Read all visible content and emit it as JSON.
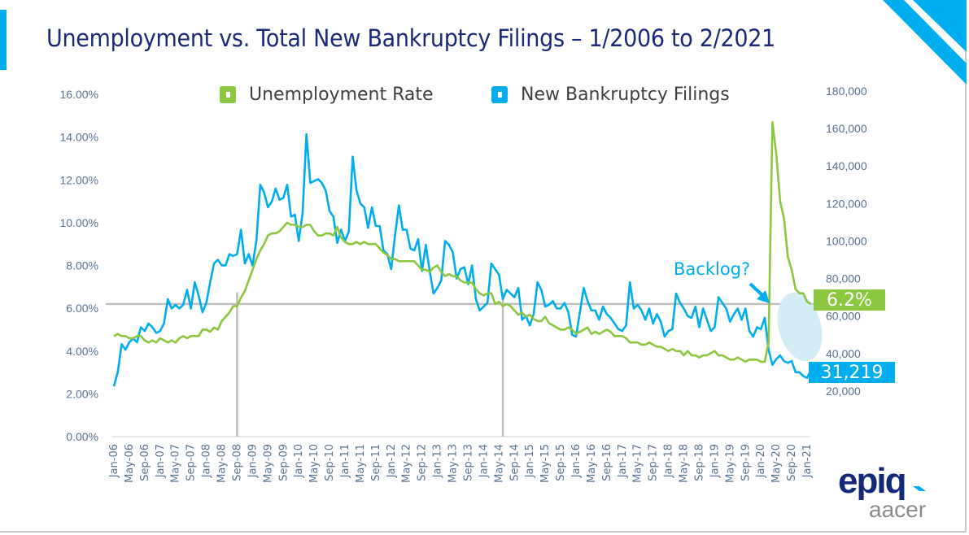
{
  "title": "Unemployment vs. Total New Bankruptcy Filings – 1/2006 to 2/2021",
  "colors": {
    "unemployment": "#8dc63f",
    "filings": "#00aeef",
    "title": "#1b2a7b",
    "axis_text": "#5a7391",
    "reference_line": "#bfbfbf",
    "backlog_ellipse": "#d3ecf6"
  },
  "annotations": {
    "backlog": "Backlog?",
    "unemployment_callout": "6.2%",
    "filings_callout": "31,219"
  },
  "logo": {
    "brand": "epiq",
    "sub": "aacer"
  },
  "chart_data": {
    "type": "line",
    "title": "Unemployment vs. Total New Bankruptcy Filings – 1/2006 to 2/2021",
    "x_range": [
      "Jan-06",
      "Feb-21"
    ],
    "frequency": "monthly",
    "x_tick_labels": [
      "Jan-06",
      "May-06",
      "Sep-06",
      "Jan-07",
      "May-07",
      "Sep-07",
      "Jan-08",
      "May-08",
      "Sep-08",
      "Jan-09",
      "May-09",
      "Sep-09",
      "Jan-10",
      "May-10",
      "Sep-10",
      "Jan-11",
      "May-11",
      "Sep-11",
      "Jan-12",
      "May-12",
      "Sep-12",
      "Jan-13",
      "May-13",
      "Sep-13",
      "Jan-14",
      "May-14",
      "Sep-14",
      "Jan-15",
      "May-15",
      "Sep-15",
      "Jan-16",
      "May-16",
      "Sep-16",
      "Jan-17",
      "May-17",
      "Sep-17",
      "Jan-18",
      "May-18",
      "Sep-18",
      "Jan-19",
      "May-19",
      "Sep-19",
      "Jan-20",
      "May-20",
      "Sep-20",
      "Jan-21"
    ],
    "y_left": {
      "ylim": [
        0,
        16
      ],
      "ticks": [
        "0.00%",
        "2.00%",
        "4.00%",
        "6.00%",
        "8.00%",
        "10.00%",
        "12.00%",
        "14.00%",
        "16.00%"
      ]
    },
    "y_right": {
      "ylim": [
        0,
        180000
      ],
      "ticks": [
        "20,000",
        "40,000",
        "60,000",
        "80,000",
        "100,000",
        "120,000",
        "140,000",
        "160,000",
        "180,000"
      ]
    },
    "legend": {
      "placement": "top-center"
    },
    "grid": false,
    "reference_lines": {
      "horizontal_unemployment_pct": 6.2,
      "vertical_at": [
        "Sep-08",
        "Jun-14"
      ]
    },
    "series": [
      {
        "name": "Unemployment Rate",
        "axis": "left",
        "unit": "%",
        "values": [
          4.7,
          4.8,
          4.7,
          4.7,
          4.6,
          4.6,
          4.7,
          4.7,
          4.5,
          4.4,
          4.5,
          4.4,
          4.6,
          4.5,
          4.4,
          4.5,
          4.4,
          4.6,
          4.7,
          4.6,
          4.7,
          4.7,
          4.7,
          5.0,
          5.0,
          4.9,
          5.1,
          5.0,
          5.4,
          5.6,
          5.8,
          6.1,
          6.1,
          6.5,
          6.8,
          7.3,
          7.8,
          8.3,
          8.7,
          9.0,
          9.4,
          9.5,
          9.5,
          9.6,
          9.8,
          10.0,
          9.9,
          9.9,
          9.8,
          9.8,
          9.9,
          9.9,
          9.6,
          9.4,
          9.4,
          9.5,
          9.5,
          9.4,
          9.8,
          9.3,
          9.1,
          9.0,
          9.0,
          9.1,
          9.0,
          9.1,
          9.0,
          9.0,
          9.0,
          8.8,
          8.6,
          8.5,
          8.3,
          8.3,
          8.2,
          8.2,
          8.2,
          8.2,
          8.2,
          8.0,
          7.8,
          7.8,
          7.7,
          7.9,
          8.0,
          7.7,
          7.5,
          7.6,
          7.5,
          7.5,
          7.3,
          7.2,
          7.2,
          7.2,
          6.9,
          6.7,
          6.6,
          6.7,
          6.7,
          6.2,
          6.3,
          6.1,
          6.2,
          6.1,
          5.9,
          5.7,
          5.8,
          5.6,
          5.7,
          5.5,
          5.4,
          5.4,
          5.6,
          5.3,
          5.2,
          5.1,
          5.0,
          5.0,
          5.1,
          5.0,
          4.8,
          4.9,
          5.0,
          5.1,
          4.8,
          4.9,
          4.8,
          4.9,
          5.0,
          4.9,
          4.7,
          4.7,
          4.7,
          4.6,
          4.4,
          4.4,
          4.4,
          4.3,
          4.3,
          4.4,
          4.3,
          4.2,
          4.2,
          4.1,
          4.0,
          4.1,
          4.0,
          4.0,
          3.8,
          4.0,
          3.8,
          3.8,
          3.7,
          3.8,
          3.8,
          3.9,
          4.0,
          3.8,
          3.8,
          3.7,
          3.6,
          3.6,
          3.7,
          3.6,
          3.5,
          3.6,
          3.6,
          3.6,
          3.5,
          3.5,
          4.4,
          14.7,
          13.2,
          11.0,
          10.2,
          8.4,
          7.8,
          6.9,
          6.7,
          6.7,
          6.3,
          6.2
        ]
      },
      {
        "name": "New Bankruptcy Filings",
        "axis": "right",
        "values": [
          22500,
          30000,
          45000,
          42000,
          46000,
          48000,
          46000,
          54000,
          52000,
          56000,
          54000,
          51000,
          52000,
          56000,
          69000,
          64000,
          66000,
          64000,
          66000,
          74000,
          64000,
          78000,
          71000,
          62000,
          67000,
          78000,
          88000,
          90000,
          87000,
          87000,
          93000,
          92000,
          93000,
          106000,
          88000,
          93000,
          87000,
          100000,
          130000,
          126000,
          118000,
          121000,
          128000,
          122000,
          123000,
          130000,
          113000,
          114000,
          100000,
          115000,
          157000,
          131000,
          132000,
          133000,
          131000,
          127000,
          116000,
          113000,
          99000,
          106000,
          100000,
          105000,
          145000,
          127000,
          120000,
          118000,
          107000,
          118000,
          108000,
          108000,
          95000,
          93000,
          85000,
          103000,
          119000,
          106000,
          106000,
          96000,
          95000,
          101000,
          84000,
          98000,
          84000,
          72000,
          75000,
          79000,
          100000,
          98000,
          94000,
          80000,
          85000,
          86000,
          77000,
          87000,
          69000,
          63000,
          65000,
          67000,
          88000,
          85000,
          82000,
          69000,
          74000,
          72000,
          70000,
          75000,
          58000,
          60000,
          55000,
          61000,
          78000,
          74000,
          65000,
          66000,
          68000,
          64000,
          64000,
          67000,
          62000,
          50000,
          49000,
          62000,
          75000,
          68000,
          63000,
          63000,
          58000,
          65000,
          61000,
          59000,
          56000,
          53000,
          52000,
          55000,
          78000,
          64000,
          66000,
          63000,
          58000,
          64000,
          56000,
          61000,
          57000,
          49000,
          52000,
          53000,
          72000,
          67000,
          64000,
          60000,
          59000,
          65000,
          54000,
          64000,
          58000,
          52000,
          54000,
          70000,
          67000,
          64000,
          57000,
          61000,
          64000,
          58000,
          64000,
          52000,
          49000,
          54000,
          53000,
          59000,
          42000,
          34000,
          37000,
          39000,
          36000,
          35000,
          36000,
          30000,
          30000,
          28000,
          27000,
          31219
        ]
      }
    ]
  }
}
